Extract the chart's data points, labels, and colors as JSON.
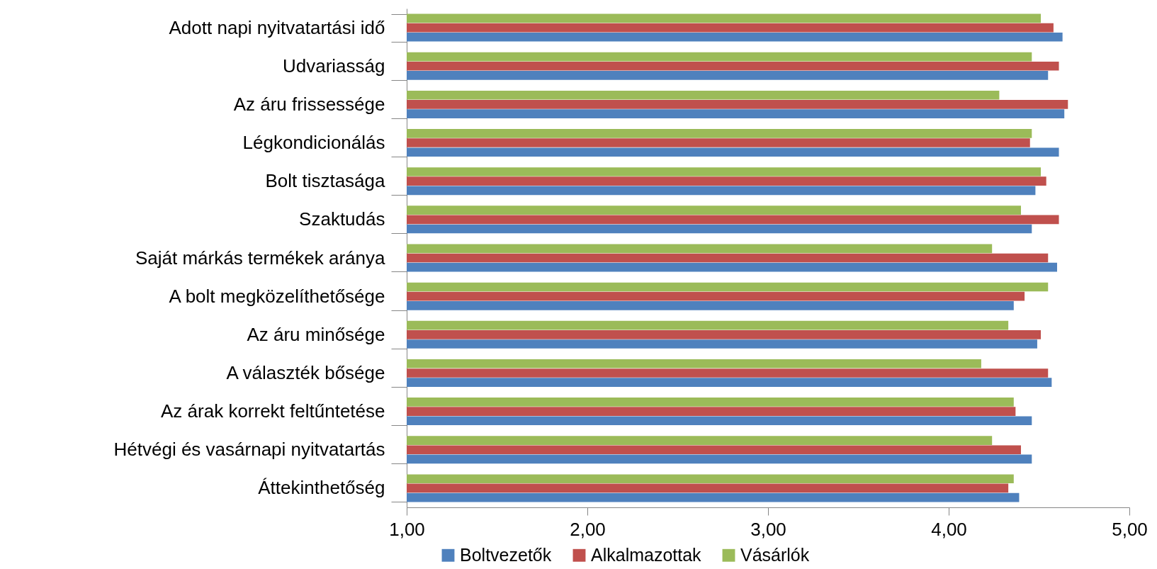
{
  "chart_data": {
    "type": "bar",
    "orientation": "horizontal",
    "categories": [
      "Adott napi nyitvatartási idő",
      "Udvariasság",
      "Az áru frissessége",
      "Légkondicionálás",
      "Bolt tisztasága",
      "Szaktudás",
      "Saját márkás termékek aránya",
      "A bolt megközelíthetősége",
      "Az áru minősége",
      "A választék bősége",
      "Az árak korrekt feltűntetése",
      "Hétvégi és vasárnapi nyitvatartás",
      "Áttekinthetőség"
    ],
    "series": [
      {
        "name": "Boltvezetők",
        "color": "#4f81bd",
        "values": [
          4.63,
          4.55,
          4.64,
          4.61,
          4.48,
          4.46,
          4.6,
          4.36,
          4.49,
          4.57,
          4.46,
          4.46,
          4.39
        ]
      },
      {
        "name": "Alkalmazottak",
        "color": "#c0504d",
        "values": [
          4.58,
          4.61,
          4.66,
          4.45,
          4.54,
          4.61,
          4.55,
          4.42,
          4.51,
          4.55,
          4.37,
          4.4,
          4.33
        ]
      },
      {
        "name": "Vásárlók",
        "color": "#9bbb59",
        "values": [
          4.51,
          4.46,
          4.28,
          4.46,
          4.51,
          4.4,
          4.24,
          4.55,
          4.33,
          4.18,
          4.36,
          4.24,
          4.36
        ]
      }
    ],
    "xlim": [
      1,
      5
    ],
    "xticks": [
      {
        "value": 1,
        "label": "1,00"
      },
      {
        "value": 2,
        "label": "2,00"
      },
      {
        "value": 3,
        "label": "3,00"
      },
      {
        "value": 4,
        "label": "4,00"
      },
      {
        "value": 5,
        "label": "5,00"
      }
    ],
    "legend": "bottom"
  }
}
